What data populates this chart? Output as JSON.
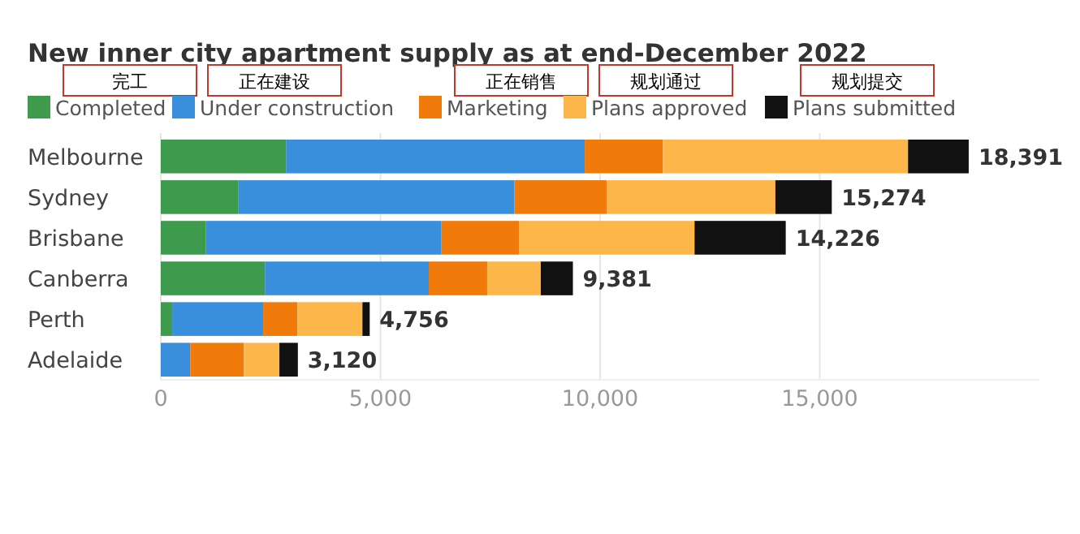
{
  "chart_data": {
    "type": "bar",
    "orientation": "horizontal",
    "stacked": true,
    "title": "New inner city apartment supply as at end-December 2022",
    "categories": [
      "Melbourne",
      "Sydney",
      "Brisbane",
      "Canberra",
      "Perth",
      "Adelaide"
    ],
    "series": [
      {
        "name": "Completed",
        "color": "#3e9a4c",
        "values": [
          2850,
          1770,
          1030,
          2370,
          260,
          0
        ]
      },
      {
        "name": "Under construction",
        "color": "#3a8fdd",
        "values": [
          6800,
          6280,
          5360,
          3730,
          2070,
          670
        ]
      },
      {
        "name": "Marketing",
        "color": "#f07a0a",
        "values": [
          1780,
          2100,
          1770,
          1330,
          780,
          1220
        ]
      },
      {
        "name": "Plans approved",
        "color": "#fdb64a",
        "values": [
          5580,
          3840,
          3990,
          1220,
          1480,
          810
        ]
      },
      {
        "name": "Plans submitted",
        "color": "#111111",
        "values": [
          1381,
          1284,
          2076,
          731,
          166,
          420
        ]
      }
    ],
    "totals": [
      "18,391",
      "15,274",
      "14,226",
      "9,381",
      "4,756",
      "3,120"
    ],
    "annotations": [
      "完工",
      "正在建设",
      "正在销售",
      "规划通过",
      "规划提交"
    ],
    "xlim": [
      0,
      20000
    ],
    "xticks": [
      0,
      {
        "value": 5000,
        "label": "5,000"
      },
      {
        "value": 10000,
        "label": "10,000"
      },
      {
        "value": 15000,
        "label": "15,000"
      }
    ],
    "grid": "x",
    "legend": "top left"
  }
}
